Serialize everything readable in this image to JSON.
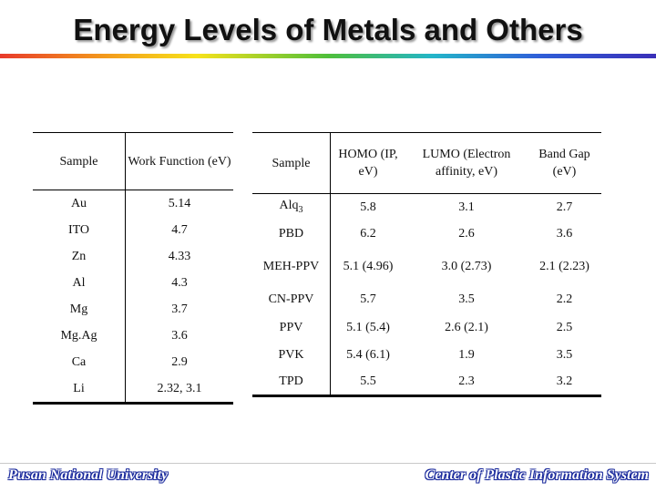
{
  "slide": {
    "title": "Energy Levels of Metals and Others",
    "colors": {
      "rainbow_start": "#e83a2b",
      "rainbow_end": "#3a2fb8",
      "footer_outline": "#1a2a9c"
    }
  },
  "metals_table": {
    "headers": [
      "Sample",
      "Work Function (eV)"
    ],
    "rows": [
      [
        "Au",
        "5.14"
      ],
      [
        "ITO",
        "4.7"
      ],
      [
        "Zn",
        "4.33"
      ],
      [
        "Al",
        "4.3"
      ],
      [
        "Mg",
        "3.7"
      ],
      [
        "Mg.Ag",
        "3.6"
      ],
      [
        "Ca",
        "2.9"
      ],
      [
        "Li",
        "2.32, 3.1"
      ]
    ]
  },
  "organics_table": {
    "headers": [
      "Sample",
      "HOMO (IP, eV)",
      "LUMO (Electron affinity, eV)",
      "Band Gap (eV)"
    ],
    "rows": [
      [
        "Alq3",
        "5.8",
        "3.1",
        "2.7"
      ],
      [
        "PBD",
        "6.2",
        "2.6",
        "3.6"
      ],
      [
        "MEH-PPV",
        "5.1 (4.96)",
        "3.0 (2.73)",
        "2.1 (2.23)"
      ],
      [
        "CN-PPV",
        "5.7",
        "3.5",
        "2.2"
      ],
      [
        "PPV",
        "5.1 (5.4)",
        "2.6 (2.1)",
        "2.5"
      ],
      [
        "PVK",
        "5.4 (6.1)",
        "1.9",
        "3.5"
      ],
      [
        "TPD",
        "5.5",
        "2.3",
        "3.2"
      ]
    ]
  },
  "footer": {
    "left": "Pusan National University",
    "right": "Center of Plastic Information System"
  }
}
